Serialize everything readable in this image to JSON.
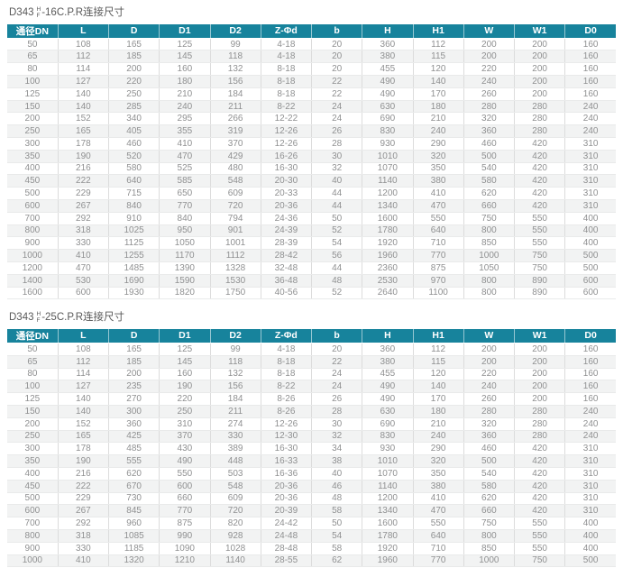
{
  "colors": {
    "header_bg": "#17839c",
    "header_text": "#ffffff",
    "body_text": "#8f9091",
    "row_alt_bg": "#f2f3f3",
    "title_text": "#595959"
  },
  "tables": [
    {
      "title": {
        "model": "D343",
        "sup": "H",
        "sub": "F",
        "suffix": "-16C.P.R连接尺寸"
      },
      "headers": [
        "通径DN",
        "L",
        "D",
        "D1",
        "D2",
        "Z-Φd",
        "b",
        "H",
        "H1",
        "W",
        "W1",
        "D0"
      ],
      "rows": [
        [
          "50",
          "108",
          "165",
          "125",
          "99",
          "4-18",
          "20",
          "360",
          "112",
          "200",
          "200",
          "160"
        ],
        [
          "65",
          "112",
          "185",
          "145",
          "118",
          "4-18",
          "20",
          "380",
          "115",
          "200",
          "200",
          "160"
        ],
        [
          "80",
          "114",
          "200",
          "160",
          "132",
          "8-18",
          "20",
          "455",
          "120",
          "220",
          "200",
          "160"
        ],
        [
          "100",
          "127",
          "220",
          "180",
          "156",
          "8-18",
          "22",
          "490",
          "140",
          "240",
          "200",
          "160"
        ],
        [
          "125",
          "140",
          "250",
          "210",
          "184",
          "8-18",
          "22",
          "490",
          "170",
          "260",
          "200",
          "160"
        ],
        [
          "150",
          "140",
          "285",
          "240",
          "211",
          "8-22",
          "24",
          "630",
          "180",
          "280",
          "280",
          "240"
        ],
        [
          "200",
          "152",
          "340",
          "295",
          "266",
          "12-22",
          "24",
          "690",
          "210",
          "320",
          "280",
          "240"
        ],
        [
          "250",
          "165",
          "405",
          "355",
          "319",
          "12-26",
          "26",
          "830",
          "240",
          "360",
          "280",
          "240"
        ],
        [
          "300",
          "178",
          "460",
          "410",
          "370",
          "12-26",
          "28",
          "930",
          "290",
          "460",
          "420",
          "310"
        ],
        [
          "350",
          "190",
          "520",
          "470",
          "429",
          "16-26",
          "30",
          "1010",
          "320",
          "500",
          "420",
          "310"
        ],
        [
          "400",
          "216",
          "580",
          "525",
          "480",
          "16-30",
          "32",
          "1070",
          "350",
          "540",
          "420",
          "310"
        ],
        [
          "450",
          "222",
          "640",
          "585",
          "548",
          "20-30",
          "40",
          "1140",
          "380",
          "580",
          "420",
          "310"
        ],
        [
          "500",
          "229",
          "715",
          "650",
          "609",
          "20-33",
          "44",
          "1200",
          "410",
          "620",
          "420",
          "310"
        ],
        [
          "600",
          "267",
          "840",
          "770",
          "720",
          "20-36",
          "44",
          "1340",
          "470",
          "660",
          "420",
          "310"
        ],
        [
          "700",
          "292",
          "910",
          "840",
          "794",
          "24-36",
          "50",
          "1600",
          "550",
          "750",
          "550",
          "400"
        ],
        [
          "800",
          "318",
          "1025",
          "950",
          "901",
          "24-39",
          "52",
          "1780",
          "640",
          "800",
          "550",
          "400"
        ],
        [
          "900",
          "330",
          "1125",
          "1050",
          "1001",
          "28-39",
          "54",
          "1920",
          "710",
          "850",
          "550",
          "400"
        ],
        [
          "1000",
          "410",
          "1255",
          "1170",
          "1112",
          "28-42",
          "56",
          "1960",
          "770",
          "1000",
          "750",
          "500"
        ],
        [
          "1200",
          "470",
          "1485",
          "1390",
          "1328",
          "32-48",
          "44",
          "2360",
          "875",
          "1050",
          "750",
          "500"
        ],
        [
          "1400",
          "530",
          "1690",
          "1590",
          "1530",
          "36-48",
          "48",
          "2530",
          "970",
          "800",
          "890",
          "600"
        ],
        [
          "1600",
          "600",
          "1930",
          "1820",
          "1750",
          "40-56",
          "52",
          "2640",
          "1100",
          "800",
          "890",
          "600"
        ]
      ]
    },
    {
      "title": {
        "model": "D343",
        "sup": "H",
        "sub": "F",
        "suffix": "-25C.P.R连接尺寸"
      },
      "headers": [
        "通径DN",
        "L",
        "D",
        "D1",
        "D2",
        "Z-Φd",
        "b",
        "H",
        "H1",
        "W",
        "W1",
        "D0"
      ],
      "rows": [
        [
          "50",
          "108",
          "165",
          "125",
          "99",
          "4-18",
          "20",
          "360",
          "112",
          "200",
          "200",
          "160"
        ],
        [
          "65",
          "112",
          "185",
          "145",
          "118",
          "8-18",
          "22",
          "380",
          "115",
          "200",
          "200",
          "160"
        ],
        [
          "80",
          "114",
          "200",
          "160",
          "132",
          "8-18",
          "24",
          "455",
          "120",
          "220",
          "200",
          "160"
        ],
        [
          "100",
          "127",
          "235",
          "190",
          "156",
          "8-22",
          "24",
          "490",
          "140",
          "240",
          "200",
          "160"
        ],
        [
          "125",
          "140",
          "270",
          "220",
          "184",
          "8-26",
          "26",
          "490",
          "170",
          "260",
          "200",
          "160"
        ],
        [
          "150",
          "140",
          "300",
          "250",
          "211",
          "8-26",
          "28",
          "630",
          "180",
          "280",
          "280",
          "240"
        ],
        [
          "200",
          "152",
          "360",
          "310",
          "274",
          "12-26",
          "30",
          "690",
          "210",
          "320",
          "280",
          "240"
        ],
        [
          "250",
          "165",
          "425",
          "370",
          "330",
          "12-30",
          "32",
          "830",
          "240",
          "360",
          "280",
          "240"
        ],
        [
          "300",
          "178",
          "485",
          "430",
          "389",
          "16-30",
          "34",
          "930",
          "290",
          "460",
          "420",
          "310"
        ],
        [
          "350",
          "190",
          "555",
          "490",
          "448",
          "16-33",
          "38",
          "1010",
          "320",
          "500",
          "420",
          "310"
        ],
        [
          "400",
          "216",
          "620",
          "550",
          "503",
          "16-36",
          "40",
          "1070",
          "350",
          "540",
          "420",
          "310"
        ],
        [
          "450",
          "222",
          "670",
          "600",
          "548",
          "20-36",
          "46",
          "1140",
          "380",
          "580",
          "420",
          "310"
        ],
        [
          "500",
          "229",
          "730",
          "660",
          "609",
          "20-36",
          "48",
          "1200",
          "410",
          "620",
          "420",
          "310"
        ],
        [
          "600",
          "267",
          "845",
          "770",
          "720",
          "20-39",
          "58",
          "1340",
          "470",
          "660",
          "420",
          "310"
        ],
        [
          "700",
          "292",
          "960",
          "875",
          "820",
          "24-42",
          "50",
          "1600",
          "550",
          "750",
          "550",
          "400"
        ],
        [
          "800",
          "318",
          "1085",
          "990",
          "928",
          "24-48",
          "54",
          "1780",
          "640",
          "800",
          "550",
          "400"
        ],
        [
          "900",
          "330",
          "1185",
          "1090",
          "1028",
          "28-48",
          "58",
          "1920",
          "710",
          "850",
          "550",
          "400"
        ],
        [
          "1000",
          "410",
          "1320",
          "1210",
          "1140",
          "28-55",
          "62",
          "1960",
          "770",
          "1000",
          "750",
          "500"
        ]
      ]
    }
  ]
}
